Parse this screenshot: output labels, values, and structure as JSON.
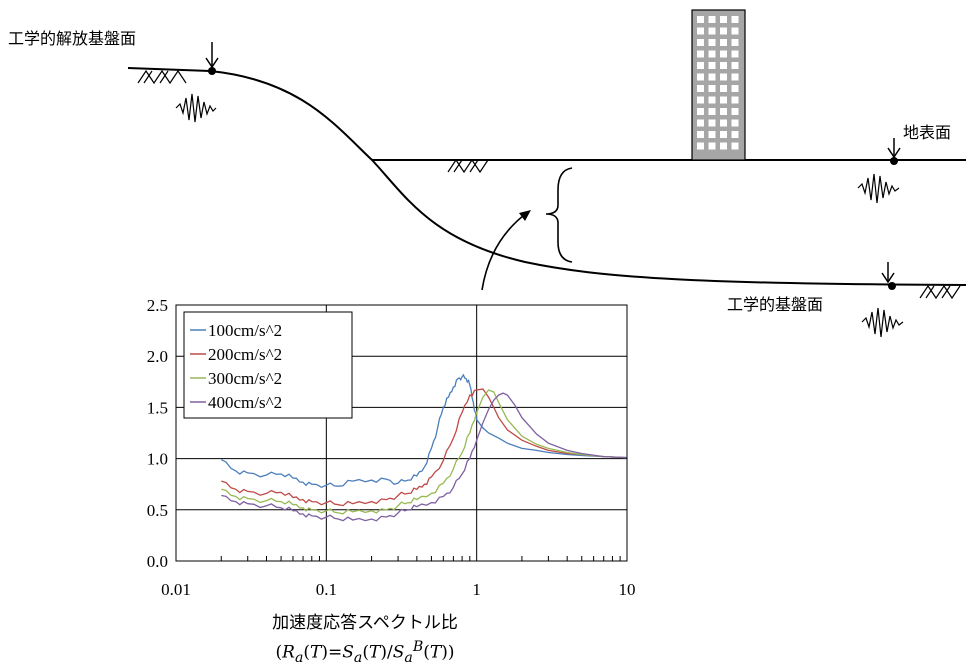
{
  "labels": {
    "engineering_bedrock_release": "工学的解放基盤面",
    "ground_surface": "地表面",
    "engineering_bedrock": "工学的基盤面"
  },
  "chart_data": {
    "type": "line",
    "xscale": "log",
    "xlim": [
      0.01,
      10
    ],
    "ylim": [
      0.0,
      2.5
    ],
    "xticks": [
      "0.01",
      "0.1",
      "1",
      "10"
    ],
    "yticks": [
      "0.0",
      "0.5",
      "1.0",
      "1.5",
      "2.0",
      "2.5"
    ],
    "xlabel": "加速度応答スペクトル比",
    "xlabel_formula": "(Ra(T)=Sa(T)/SaB(T))",
    "grid": true,
    "legend_position": "top-left",
    "series": [
      {
        "name": "100cm/s^2",
        "color": "#4a7ebb",
        "x": [
          0.02,
          0.025,
          0.03,
          0.04,
          0.05,
          0.06,
          0.07,
          0.08,
          0.1,
          0.12,
          0.15,
          0.2,
          0.25,
          0.3,
          0.35,
          0.4,
          0.45,
          0.5,
          0.55,
          0.6,
          0.65,
          0.7,
          0.75,
          0.8,
          0.85,
          0.9,
          0.95,
          1.0,
          1.1,
          1.2,
          1.4,
          1.6,
          2.0,
          2.5,
          3.0,
          4.0,
          5.0,
          7.0,
          10.0
        ],
        "y": [
          0.99,
          0.88,
          0.86,
          0.84,
          0.85,
          0.81,
          0.77,
          0.75,
          0.74,
          0.73,
          0.78,
          0.79,
          0.8,
          0.76,
          0.79,
          0.83,
          0.92,
          1.1,
          1.3,
          1.5,
          1.6,
          1.7,
          1.78,
          1.8,
          1.78,
          1.72,
          1.55,
          1.38,
          1.3,
          1.25,
          1.2,
          1.15,
          1.1,
          1.08,
          1.06,
          1.04,
          1.03,
          1.02,
          1.01
        ]
      },
      {
        "name": "200cm/s^2",
        "color": "#be4b48",
        "x": [
          0.02,
          0.025,
          0.03,
          0.04,
          0.05,
          0.06,
          0.07,
          0.08,
          0.1,
          0.12,
          0.15,
          0.2,
          0.25,
          0.3,
          0.35,
          0.4,
          0.45,
          0.5,
          0.6,
          0.7,
          0.8,
          0.9,
          1.0,
          1.1,
          1.2,
          1.3,
          1.4,
          1.6,
          2.0,
          2.5,
          3.0,
          4.0,
          5.0,
          7.0,
          10.0
        ],
        "y": [
          0.78,
          0.7,
          0.68,
          0.66,
          0.67,
          0.62,
          0.6,
          0.58,
          0.57,
          0.55,
          0.56,
          0.58,
          0.6,
          0.64,
          0.66,
          0.7,
          0.75,
          0.82,
          0.98,
          1.2,
          1.45,
          1.62,
          1.67,
          1.68,
          1.6,
          1.5,
          1.4,
          1.28,
          1.18,
          1.12,
          1.08,
          1.05,
          1.04,
          1.02,
          1.01
        ]
      },
      {
        "name": "300cm/s^2",
        "color": "#98b954",
        "x": [
          0.02,
          0.025,
          0.03,
          0.04,
          0.05,
          0.06,
          0.07,
          0.08,
          0.1,
          0.12,
          0.15,
          0.2,
          0.25,
          0.3,
          0.35,
          0.4,
          0.5,
          0.6,
          0.7,
          0.8,
          0.9,
          1.0,
          1.1,
          1.2,
          1.3,
          1.4,
          1.6,
          2.0,
          2.5,
          3.0,
          4.0,
          5.0,
          7.0,
          10.0
        ],
        "y": [
          0.7,
          0.63,
          0.61,
          0.59,
          0.58,
          0.55,
          0.52,
          0.5,
          0.49,
          0.47,
          0.48,
          0.49,
          0.5,
          0.54,
          0.57,
          0.6,
          0.66,
          0.76,
          0.9,
          1.06,
          1.25,
          1.45,
          1.6,
          1.67,
          1.65,
          1.55,
          1.38,
          1.22,
          1.14,
          1.1,
          1.06,
          1.04,
          1.02,
          1.01
        ]
      },
      {
        "name": "400cm/s^2",
        "color": "#7d60a0",
        "x": [
          0.02,
          0.025,
          0.03,
          0.04,
          0.05,
          0.06,
          0.07,
          0.08,
          0.1,
          0.12,
          0.15,
          0.2,
          0.25,
          0.3,
          0.35,
          0.4,
          0.5,
          0.6,
          0.7,
          0.8,
          0.9,
          1.0,
          1.1,
          1.2,
          1.3,
          1.4,
          1.5,
          1.6,
          1.8,
          2.0,
          2.5,
          3.0,
          4.0,
          5.0,
          7.0,
          10.0
        ],
        "y": [
          0.64,
          0.58,
          0.56,
          0.54,
          0.52,
          0.49,
          0.46,
          0.44,
          0.43,
          0.41,
          0.4,
          0.41,
          0.43,
          0.47,
          0.5,
          0.53,
          0.57,
          0.63,
          0.72,
          0.85,
          1.0,
          1.18,
          1.35,
          1.48,
          1.57,
          1.62,
          1.64,
          1.62,
          1.52,
          1.4,
          1.24,
          1.15,
          1.08,
          1.05,
          1.02,
          1.01
        ]
      }
    ]
  }
}
